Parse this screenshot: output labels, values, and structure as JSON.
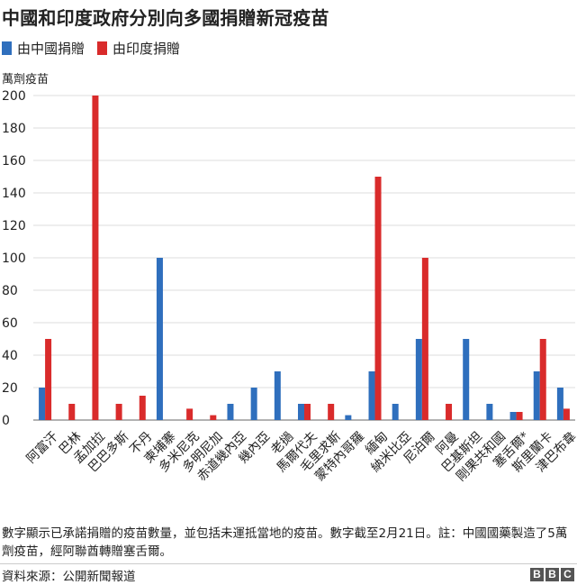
{
  "title": "中國和印度政府分別向多國捐贈新冠疫苗",
  "legend": [
    {
      "label": "由中國捐贈",
      "color": "#2f6fbd"
    },
    {
      "label": "由印度捐贈",
      "color": "#d92b2b"
    }
  ],
  "footnote": "數字顯示已承諾捐贈的疫苗數量，並包括未運抵當地的疫苗。數字截至2月21日。註：中國國藥製造了5萬劑疫苗，經阿聯酋轉贈塞舌爾。",
  "source": "資料來源：公開新聞報道",
  "logo": [
    "B",
    "B",
    "C"
  ],
  "chart_data": {
    "type": "bar",
    "ylabel": "萬劑疫苗",
    "ylim": [
      0,
      200
    ],
    "yticks": [
      0,
      20,
      40,
      60,
      80,
      100,
      120,
      140,
      160,
      180,
      200
    ],
    "grid": true,
    "categories": [
      "阿富汗",
      "巴林",
      "孟加拉",
      "巴巴多斯",
      "不丹",
      "柬埔寨",
      "多米尼克",
      "多明尼加",
      "赤道幾內亞",
      "幾內亞",
      "老撾",
      "馬爾代夫",
      "毛里求斯",
      "蒙特內哥羅",
      "緬甸",
      "納米比亞",
      "尼泊爾",
      "阿曼",
      "巴基斯坦",
      "剛果共和國",
      "塞舌爾*",
      "斯里蘭卡",
      "津巴布韋"
    ],
    "series": [
      {
        "name": "由中國捐贈",
        "color": "#2f6fbd",
        "values": [
          20,
          0,
          0,
          0,
          0,
          100,
          0,
          0,
          10,
          20,
          30,
          10,
          0,
          3,
          30,
          10,
          50,
          0,
          50,
          10,
          5,
          30,
          20
        ]
      },
      {
        "name": "由印度捐贈",
        "color": "#d92b2b",
        "values": [
          50,
          10,
          200,
          10,
          15,
          0,
          7,
          3,
          0,
          0,
          0,
          10,
          10,
          0,
          150,
          0,
          100,
          10,
          0,
          0,
          5,
          50,
          7
        ]
      }
    ]
  }
}
